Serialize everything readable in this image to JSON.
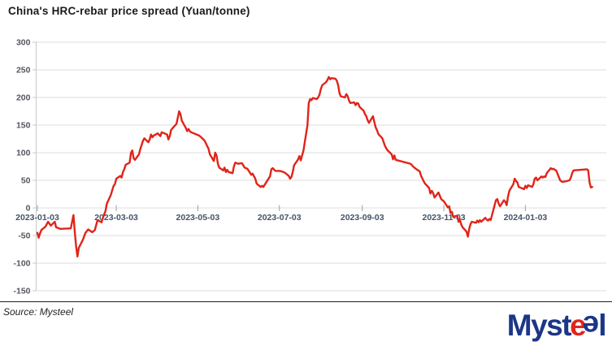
{
  "title": "China's HRC-rebar price spread (Yuan/tonne)",
  "source_note": "Source: Mysteel",
  "logo": {
    "part1": "Myst",
    "e_red": "e",
    "e_blue": "e",
    "part2": "l",
    "navy": "#1c3687",
    "red": "#e1251b"
  },
  "chart_data": {
    "type": "line",
    "title": "China's HRC-rebar price spread (Yuan/tonne)",
    "ylabel": "",
    "xlabel": "",
    "ylim": [
      -150,
      300
    ],
    "ytick_step": 50,
    "yticks": [
      300,
      250,
      200,
      150,
      100,
      50,
      0,
      -50,
      -100,
      -150
    ],
    "xtick_labels": [
      "2023-01-03",
      "2023-03-03",
      "2023-05-03",
      "2023-07-03",
      "2023-09-03",
      "2023-11-03",
      "2024-01-03"
    ],
    "grid": true,
    "legend": "none",
    "line_color": "#e02419",
    "grid_color": "#dcdcdc",
    "axis_color": "#c9c9c9",
    "ytick_text_color": "#54565e",
    "xtick_text_color": "#44546a",
    "series": [
      {
        "name": "HRC-rebar price spread",
        "points": [
          [
            "2023-01-03",
            -45
          ],
          [
            "2023-01-04",
            -54
          ],
          [
            "2023-01-05",
            -46
          ],
          [
            "2023-01-06",
            -40
          ],
          [
            "2023-01-09",
            -34
          ],
          [
            "2023-01-11",
            -25
          ],
          [
            "2023-01-13",
            -32
          ],
          [
            "2023-01-16",
            -25
          ],
          [
            "2023-01-17",
            -35
          ],
          [
            "2023-01-20",
            -38
          ],
          [
            "2023-01-28",
            -37
          ],
          [
            "2023-01-30",
            -13
          ],
          [
            "2023-01-31",
            -45
          ],
          [
            "2023-02-01",
            -70
          ],
          [
            "2023-02-02",
            -88
          ],
          [
            "2023-02-03",
            -72
          ],
          [
            "2023-02-06",
            -58
          ],
          [
            "2023-02-08",
            -45
          ],
          [
            "2023-02-10",
            -39
          ],
          [
            "2023-02-13",
            -44
          ],
          [
            "2023-02-15",
            -40
          ],
          [
            "2023-02-17",
            -22
          ],
          [
            "2023-02-20",
            -26
          ],
          [
            "2023-02-21",
            -18
          ],
          [
            "2023-02-23",
            -5
          ],
          [
            "2023-02-24",
            8
          ],
          [
            "2023-02-27",
            24
          ],
          [
            "2023-02-28",
            32
          ],
          [
            "2023-03-01",
            40
          ],
          [
            "2023-03-02",
            43
          ],
          [
            "2023-03-03",
            53
          ],
          [
            "2023-03-06",
            58
          ],
          [
            "2023-03-07",
            55
          ],
          [
            "2023-03-08",
            65
          ],
          [
            "2023-03-09",
            70
          ],
          [
            "2023-03-10",
            78
          ],
          [
            "2023-03-13",
            82
          ],
          [
            "2023-03-14",
            100
          ],
          [
            "2023-03-15",
            104
          ],
          [
            "2023-03-16",
            90
          ],
          [
            "2023-03-17",
            87
          ],
          [
            "2023-03-20",
            97
          ],
          [
            "2023-03-21",
            107
          ],
          [
            "2023-03-22",
            114
          ],
          [
            "2023-03-23",
            122
          ],
          [
            "2023-03-24",
            126
          ],
          [
            "2023-03-27",
            119
          ],
          [
            "2023-03-28",
            124
          ],
          [
            "2023-03-29",
            133
          ],
          [
            "2023-03-30",
            128
          ],
          [
            "2023-03-31",
            131
          ],
          [
            "2023-04-03",
            135
          ],
          [
            "2023-04-05",
            130
          ],
          [
            "2023-04-06",
            137
          ],
          [
            "2023-04-10",
            133
          ],
          [
            "2023-04-11",
            124
          ],
          [
            "2023-04-12",
            130
          ],
          [
            "2023-04-13",
            141
          ],
          [
            "2023-04-14",
            144
          ],
          [
            "2023-04-17",
            152
          ],
          [
            "2023-04-18",
            163
          ],
          [
            "2023-04-19",
            175
          ],
          [
            "2023-04-20",
            170
          ],
          [
            "2023-04-21",
            158
          ],
          [
            "2023-04-24",
            145
          ],
          [
            "2023-04-25",
            139
          ],
          [
            "2023-04-26",
            143
          ],
          [
            "2023-04-27",
            139
          ],
          [
            "2023-04-28",
            137
          ],
          [
            "2023-05-04",
            131
          ],
          [
            "2023-05-05",
            129
          ],
          [
            "2023-05-08",
            122
          ],
          [
            "2023-05-09",
            117
          ],
          [
            "2023-05-10",
            112
          ],
          [
            "2023-05-11",
            107
          ],
          [
            "2023-05-12",
            97
          ],
          [
            "2023-05-15",
            85
          ],
          [
            "2023-05-16",
            100
          ],
          [
            "2023-05-17",
            95
          ],
          [
            "2023-05-18",
            80
          ],
          [
            "2023-05-19",
            73
          ],
          [
            "2023-05-22",
            68
          ],
          [
            "2023-05-23",
            73
          ],
          [
            "2023-05-24",
            65
          ],
          [
            "2023-05-25",
            69
          ],
          [
            "2023-05-26",
            65
          ],
          [
            "2023-05-29",
            63
          ],
          [
            "2023-05-30",
            75
          ],
          [
            "2023-05-31",
            82
          ],
          [
            "2023-06-02",
            80
          ],
          [
            "2023-06-05",
            81
          ],
          [
            "2023-06-07",
            73
          ],
          [
            "2023-06-09",
            71
          ],
          [
            "2023-06-12",
            60
          ],
          [
            "2023-06-13",
            62
          ],
          [
            "2023-06-15",
            53
          ],
          [
            "2023-06-16",
            44
          ],
          [
            "2023-06-19",
            38
          ],
          [
            "2023-06-20",
            40
          ],
          [
            "2023-06-21",
            38
          ],
          [
            "2023-06-26",
            57
          ],
          [
            "2023-06-27",
            70
          ],
          [
            "2023-06-28",
            72
          ],
          [
            "2023-06-30",
            67
          ],
          [
            "2023-07-03",
            67
          ],
          [
            "2023-07-05",
            66
          ],
          [
            "2023-07-07",
            64
          ],
          [
            "2023-07-10",
            58
          ],
          [
            "2023-07-11",
            53
          ],
          [
            "2023-07-12",
            56
          ],
          [
            "2023-07-13",
            65
          ],
          [
            "2023-07-14",
            77
          ],
          [
            "2023-07-17",
            88
          ],
          [
            "2023-07-18",
            94
          ],
          [
            "2023-07-19",
            86
          ],
          [
            "2023-07-20",
            95
          ],
          [
            "2023-07-21",
            104
          ],
          [
            "2023-07-24",
            150
          ],
          [
            "2023-07-25",
            190
          ],
          [
            "2023-07-26",
            197
          ],
          [
            "2023-07-27",
            195
          ],
          [
            "2023-07-28",
            199
          ],
          [
            "2023-07-31",
            197
          ],
          [
            "2023-08-01",
            200
          ],
          [
            "2023-08-02",
            205
          ],
          [
            "2023-08-03",
            215
          ],
          [
            "2023-08-04",
            222
          ],
          [
            "2023-08-07",
            228
          ],
          [
            "2023-08-08",
            232
          ],
          [
            "2023-08-09",
            237
          ],
          [
            "2023-08-10",
            233
          ],
          [
            "2023-08-11",
            235
          ],
          [
            "2023-08-14",
            234
          ],
          [
            "2023-08-15",
            230
          ],
          [
            "2023-08-16",
            222
          ],
          [
            "2023-08-17",
            207
          ],
          [
            "2023-08-18",
            202
          ],
          [
            "2023-08-21",
            200
          ],
          [
            "2023-08-22",
            206
          ],
          [
            "2023-08-23",
            203
          ],
          [
            "2023-08-24",
            195
          ],
          [
            "2023-08-25",
            190
          ],
          [
            "2023-08-28",
            191
          ],
          [
            "2023-08-29",
            186
          ],
          [
            "2023-08-30",
            190
          ],
          [
            "2023-08-31",
            189
          ],
          [
            "2023-09-01",
            183
          ],
          [
            "2023-09-04",
            176
          ],
          [
            "2023-09-05",
            170
          ],
          [
            "2023-09-06",
            166
          ],
          [
            "2023-09-07",
            159
          ],
          [
            "2023-09-08",
            154
          ],
          [
            "2023-09-11",
            166
          ],
          [
            "2023-09-12",
            156
          ],
          [
            "2023-09-13",
            146
          ],
          [
            "2023-09-14",
            141
          ],
          [
            "2023-09-15",
            134
          ],
          [
            "2023-09-18",
            126
          ],
          [
            "2023-09-19",
            119
          ],
          [
            "2023-09-20",
            112
          ],
          [
            "2023-09-21",
            108
          ],
          [
            "2023-09-22",
            104
          ],
          [
            "2023-09-25",
            97
          ],
          [
            "2023-09-26",
            88
          ],
          [
            "2023-09-27",
            95
          ],
          [
            "2023-09-28",
            87
          ],
          [
            "2023-10-09",
            80
          ],
          [
            "2023-10-10",
            78
          ],
          [
            "2023-10-11",
            75
          ],
          [
            "2023-10-12",
            73
          ],
          [
            "2023-10-13",
            71
          ],
          [
            "2023-10-16",
            66
          ],
          [
            "2023-10-17",
            58
          ],
          [
            "2023-10-18",
            53
          ],
          [
            "2023-10-19",
            48
          ],
          [
            "2023-10-20",
            44
          ],
          [
            "2023-10-23",
            36
          ],
          [
            "2023-10-24",
            26
          ],
          [
            "2023-10-25",
            31
          ],
          [
            "2023-10-26",
            27
          ],
          [
            "2023-10-27",
            19
          ],
          [
            "2023-10-30",
            28
          ],
          [
            "2023-10-31",
            22
          ],
          [
            "2023-11-01",
            16
          ],
          [
            "2023-11-02",
            14
          ],
          [
            "2023-11-03",
            12
          ],
          [
            "2023-11-06",
            1
          ],
          [
            "2023-11-07",
            3
          ],
          [
            "2023-11-08",
            -9
          ],
          [
            "2023-11-09",
            -7
          ],
          [
            "2023-11-10",
            -16
          ],
          [
            "2023-11-13",
            -14
          ],
          [
            "2023-11-14",
            -25
          ],
          [
            "2023-11-15",
            -21
          ],
          [
            "2023-11-16",
            -30
          ],
          [
            "2023-11-17",
            -35
          ],
          [
            "2023-11-20",
            -43
          ],
          [
            "2023-11-21",
            -52
          ],
          [
            "2023-11-22",
            -38
          ],
          [
            "2023-11-23",
            -29
          ],
          [
            "2023-11-24",
            -25
          ],
          [
            "2023-11-27",
            -27
          ],
          [
            "2023-11-28",
            -23
          ],
          [
            "2023-11-29",
            -26
          ],
          [
            "2023-11-30",
            -22
          ],
          [
            "2023-12-01",
            -25
          ],
          [
            "2023-12-04",
            -18
          ],
          [
            "2023-12-05",
            -21
          ],
          [
            "2023-12-06",
            -23
          ],
          [
            "2023-12-07",
            -20
          ],
          [
            "2023-12-08",
            -22
          ],
          [
            "2023-12-11",
            5
          ],
          [
            "2023-12-12",
            14
          ],
          [
            "2023-12-13",
            16
          ],
          [
            "2023-12-14",
            8
          ],
          [
            "2023-12-15",
            3
          ],
          [
            "2023-12-18",
            14
          ],
          [
            "2023-12-19",
            11
          ],
          [
            "2023-12-20",
            5
          ],
          [
            "2023-12-21",
            20
          ],
          [
            "2023-12-22",
            31
          ],
          [
            "2023-12-25",
            43
          ],
          [
            "2023-12-26",
            53
          ],
          [
            "2023-12-27",
            49
          ],
          [
            "2023-12-28",
            46
          ],
          [
            "2023-12-29",
            38
          ],
          [
            "2024-01-02",
            34
          ],
          [
            "2024-01-03",
            40
          ],
          [
            "2024-01-04",
            36
          ],
          [
            "2024-01-05",
            41
          ],
          [
            "2024-01-08",
            38
          ],
          [
            "2024-01-09",
            43
          ],
          [
            "2024-01-10",
            53
          ],
          [
            "2024-01-11",
            55
          ],
          [
            "2024-01-12",
            50
          ],
          [
            "2024-01-15",
            57
          ],
          [
            "2024-01-16",
            55
          ],
          [
            "2024-01-17",
            57
          ],
          [
            "2024-01-18",
            56
          ],
          [
            "2024-01-19",
            63
          ],
          [
            "2024-01-22",
            72
          ],
          [
            "2024-01-23",
            70
          ],
          [
            "2024-01-24",
            71
          ],
          [
            "2024-01-25",
            69
          ],
          [
            "2024-01-26",
            68
          ],
          [
            "2024-01-29",
            50
          ],
          [
            "2024-01-30",
            48
          ],
          [
            "2024-01-31",
            47
          ],
          [
            "2024-02-01",
            48
          ],
          [
            "2024-02-02",
            48
          ],
          [
            "2024-02-05",
            50
          ],
          [
            "2024-02-06",
            55
          ],
          [
            "2024-02-07",
            63
          ],
          [
            "2024-02-08",
            68
          ],
          [
            "2024-02-18",
            70
          ],
          [
            "2024-02-19",
            68
          ],
          [
            "2024-02-20",
            46
          ],
          [
            "2024-02-21",
            37
          ],
          [
            "2024-02-22",
            38
          ]
        ]
      }
    ]
  }
}
